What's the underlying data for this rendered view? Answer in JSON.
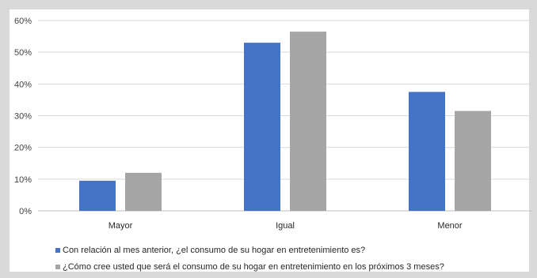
{
  "chart_data": {
    "type": "bar",
    "title": "",
    "xlabel": "",
    "ylabel": "",
    "ylim": [
      0,
      60
    ],
    "yticks": [
      0,
      10,
      20,
      30,
      40,
      50,
      60
    ],
    "ytick_labels": [
      "0%",
      "10%",
      "20%",
      "30%",
      "40%",
      "50%",
      "60%"
    ],
    "grid": true,
    "legend_position": "bottom",
    "categories": [
      "Mayor",
      "Igual",
      "Menor"
    ],
    "series": [
      {
        "name": "Con relación al mes anterior, ¿el consumo de su hogar en entretenimiento es?",
        "color": "#4472c4",
        "values": [
          9.5,
          53,
          37.5
        ]
      },
      {
        "name": "¿Cómo cree usted que será el consumo de su hogar en entretenimiento en los próximos 3 meses?",
        "color": "#a5a5a5",
        "values": [
          12,
          56.5,
          31.5
        ]
      }
    ]
  }
}
